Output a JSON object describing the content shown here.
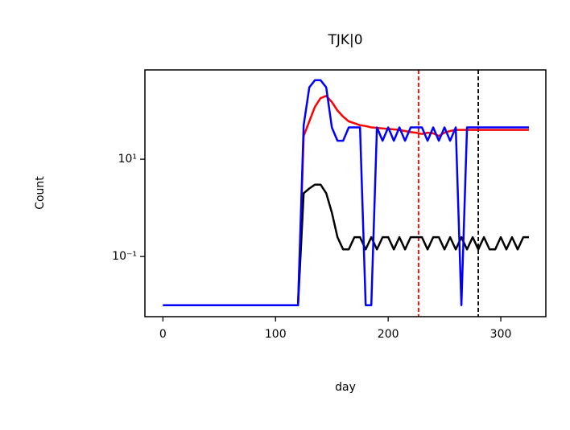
{
  "chart_data": {
    "type": "line",
    "title": "TJK|0",
    "xlabel": "day",
    "ylabel": "Count",
    "log_y": true,
    "x": [
      0,
      5,
      10,
      15,
      20,
      25,
      30,
      35,
      40,
      45,
      50,
      55,
      60,
      65,
      70,
      75,
      80,
      85,
      90,
      95,
      100,
      105,
      110,
      115,
      120,
      125,
      130,
      135,
      140,
      145,
      150,
      155,
      160,
      165,
      170,
      175,
      180,
      185,
      190,
      195,
      200,
      205,
      210,
      215,
      220,
      225,
      230,
      235,
      240,
      245,
      250,
      255,
      260,
      265,
      270,
      275,
      280,
      285,
      290,
      295,
      300,
      305,
      310,
      315,
      320,
      325
    ],
    "series": [
      {
        "color": "#ff0000",
        "values": [
          0.01,
          0.01,
          0.01,
          0.01,
          0.01,
          0.01,
          0.01,
          0.01,
          0.01,
          0.01,
          0.01,
          0.01,
          0.01,
          0.01,
          0.01,
          0.01,
          0.01,
          0.01,
          0.01,
          0.01,
          0.01,
          0.01,
          0.01,
          0.01,
          0.01,
          30,
          60,
          120,
          180,
          200,
          150,
          100,
          75,
          60,
          55,
          50,
          48,
          45,
          44,
          43,
          42,
          41,
          40,
          38,
          36,
          35,
          33,
          35,
          34,
          30,
          35,
          38,
          40,
          40,
          40,
          40,
          40,
          40,
          40,
          40,
          40,
          40,
          40,
          40,
          40,
          40
        ]
      },
      {
        "color": "#000000",
        "values": [
          0.01,
          0.01,
          0.01,
          0.01,
          0.01,
          0.01,
          0.01,
          0.01,
          0.01,
          0.01,
          0.01,
          0.01,
          0.01,
          0.01,
          0.01,
          0.01,
          0.01,
          0.01,
          0.01,
          0.01,
          0.01,
          0.01,
          0.01,
          0.01,
          0.01,
          2,
          2.5,
          3,
          3,
          2,
          0.8,
          0.25,
          0.14,
          0.14,
          0.25,
          0.25,
          0.14,
          0.25,
          0.14,
          0.25,
          0.25,
          0.14,
          0.25,
          0.14,
          0.25,
          0.25,
          0.25,
          0.14,
          0.25,
          0.25,
          0.14,
          0.25,
          0.14,
          0.25,
          0.14,
          0.25,
          0.14,
          0.25,
          0.14,
          0.14,
          0.25,
          0.14,
          0.25,
          0.14,
          0.25,
          0.25
        ]
      },
      {
        "color": "#0000ff",
        "values": [
          0.01,
          0.01,
          0.01,
          0.01,
          0.01,
          0.01,
          0.01,
          0.01,
          0.01,
          0.01,
          0.01,
          0.01,
          0.01,
          0.01,
          0.01,
          0.01,
          0.01,
          0.01,
          0.01,
          0.01,
          0.01,
          0.01,
          0.01,
          0.01,
          0.01,
          50,
          300,
          420,
          420,
          300,
          45,
          24,
          24,
          45,
          45,
          45,
          0.01,
          0.01,
          45,
          24,
          45,
          24,
          45,
          24,
          45,
          45,
          45,
          24,
          45,
          24,
          45,
          24,
          45,
          0.01,
          45,
          45,
          45,
          45,
          45,
          45,
          45,
          45,
          45,
          45,
          45,
          45
        ]
      }
    ],
    "vlines": [
      {
        "x": 227,
        "color": "#ff0000"
      },
      {
        "x": 280,
        "color": "#000000"
      }
    ],
    "xlim": [
      -16,
      340
    ],
    "xticks": [
      0,
      100,
      200,
      300
    ],
    "ylim": [
      0.0058,
      684
    ],
    "yticks": [
      {
        "value": 0.1,
        "label": "10⁻¹"
      },
      {
        "value": 10,
        "label": "10¹"
      }
    ]
  }
}
